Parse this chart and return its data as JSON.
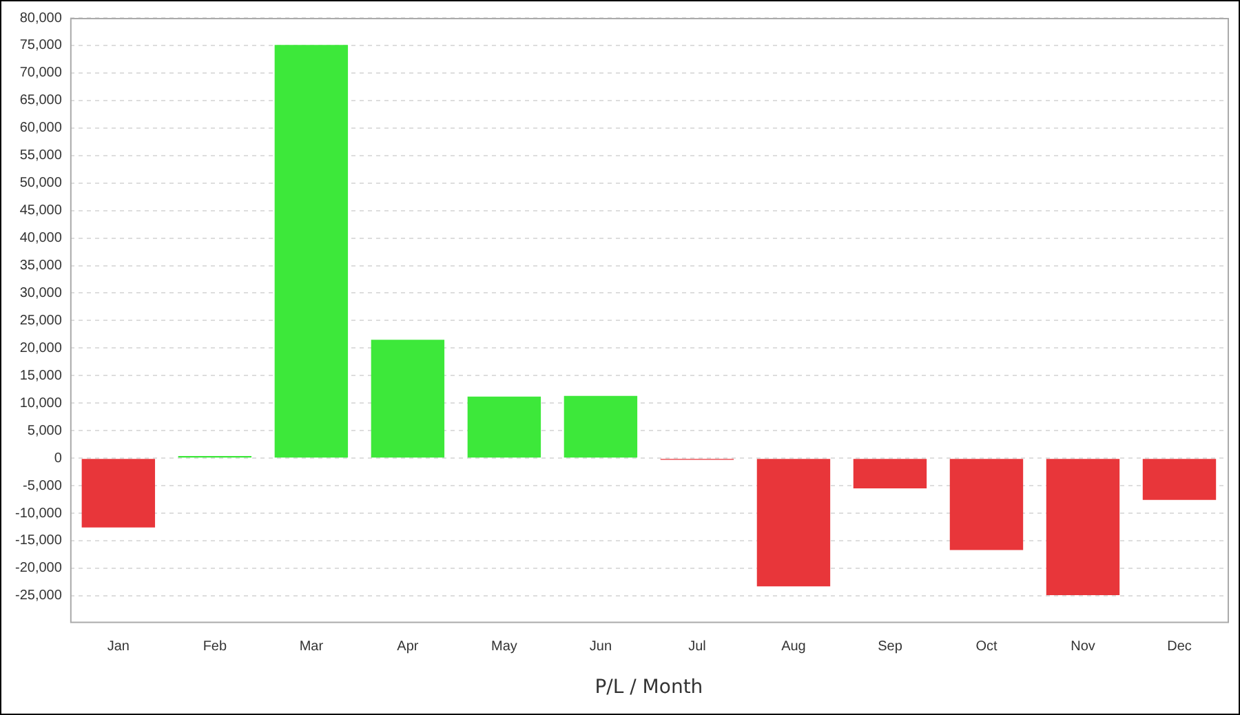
{
  "chart_data": {
    "type": "bar",
    "xlabel": "P/L / Month",
    "categories": [
      "Jan",
      "Feb",
      "Mar",
      "Apr",
      "May",
      "Jun",
      "Jul",
      "Aug",
      "Sep",
      "Oct",
      "Nov",
      "Dec"
    ],
    "values": [
      -12600,
      400,
      75100,
      21500,
      11200,
      11300,
      -300,
      -23300,
      -5500,
      -16700,
      -24900,
      -7600
    ],
    "colors": [
      "#e8363a",
      "#3de83a",
      "#3de83a",
      "#3de83a",
      "#3de83a",
      "#3de83a",
      "#e8363a",
      "#e8363a",
      "#e8363a",
      "#e8363a",
      "#e8363a",
      "#e8363a"
    ],
    "ylim": [
      -29700,
      80000
    ],
    "yticks": [
      {
        "value": -25000,
        "label": "-25,000"
      },
      {
        "value": -20000,
        "label": "-20,000"
      },
      {
        "value": -15000,
        "label": "-15,000"
      },
      {
        "value": -10000,
        "label": "-10,000"
      },
      {
        "value": -5000,
        "label": "-5,000"
      },
      0,
      {
        "value": 5000,
        "label": "5,000"
      },
      {
        "value": 10000,
        "label": "10,000"
      },
      {
        "value": 15000,
        "label": "15,000"
      },
      {
        "value": 20000,
        "label": "20,000"
      },
      {
        "value": 25000,
        "label": "25,000"
      },
      {
        "value": 30000,
        "label": "30,000"
      },
      {
        "value": 35000,
        "label": "35,000"
      },
      {
        "value": 40000,
        "label": "40,000"
      },
      {
        "value": 45000,
        "label": "45,000"
      },
      {
        "value": 50000,
        "label": "50,000"
      },
      {
        "value": 55000,
        "label": "55,000"
      },
      {
        "value": 60000,
        "label": "60,000"
      },
      {
        "value": 65000,
        "label": "65,000"
      },
      {
        "value": 70000,
        "label": "70,000"
      },
      {
        "value": 75000,
        "label": "75,000"
      },
      {
        "value": 80000,
        "label": "80,000"
      }
    ],
    "grid": "y",
    "legend": false
  }
}
